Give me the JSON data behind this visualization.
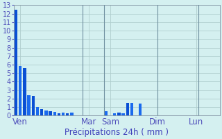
{
  "title": "",
  "xlabel": "Précipitations 24h ( mm )",
  "ylabel": "",
  "background_color": "#d4f0f0",
  "bar_color": "#0a4fd4",
  "bar_color2": "#1a6aee",
  "grid_color": "#b0cece",
  "vline_color": "#7090a0",
  "ylim": [
    0,
    13
  ],
  "yticks": [
    0,
    1,
    2,
    3,
    4,
    5,
    6,
    7,
    8,
    9,
    10,
    11,
    12,
    13
  ],
  "bar_values": [
    12.5,
    5.8,
    5.6,
    2.4,
    2.3,
    1.0,
    0.8,
    0.6,
    0.5,
    0.4,
    0.3,
    0.35,
    0.3,
    0.35,
    0.0,
    0.0,
    0.0,
    0.0,
    0.0,
    0.0,
    0.0,
    0.5,
    0.0,
    0.3,
    0.35,
    0.3,
    1.5,
    1.5,
    0.0,
    1.4,
    0.0,
    0.0,
    0.0,
    0.0,
    0.0,
    0.0,
    0.0,
    0.0,
    0.0,
    0.0,
    0.0,
    0.0,
    0.0,
    0.0,
    0.0,
    0.0,
    0.0,
    0.0
  ],
  "n_total": 48,
  "day_labels": [
    "Ven",
    "Mar",
    "Sam",
    "Dim",
    "Lun"
  ],
  "day_tick_positions": [
    1,
    17,
    22,
    33,
    42
  ],
  "vline_positions": [
    15.5,
    20.5,
    33.0,
    42.5
  ],
  "xlabel_color": "#4040bb",
  "tick_color": "#5050bb",
  "label_fontsize": 8.5,
  "tick_fontsize": 7.0
}
